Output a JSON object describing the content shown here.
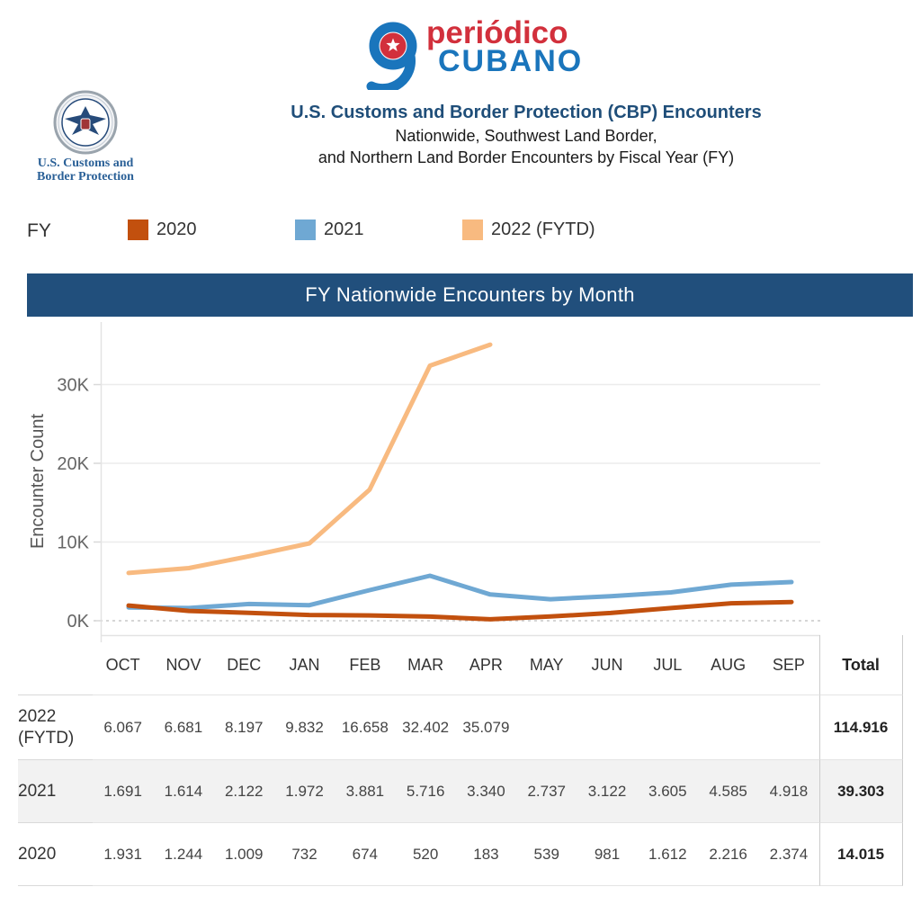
{
  "logo": {
    "word_top": "periódico",
    "word_bottom": "CUBANO",
    "red": "#D2303C",
    "blue": "#1A75BC"
  },
  "seal": {
    "caption_line1": "U.S. Customs and",
    "caption_line2": "Border Protection"
  },
  "header": {
    "title": "U.S. Customs and Border Protection (CBP) Encounters",
    "subtitle_line1": "Nationwide, Southwest Land Border,",
    "subtitle_line2": "and Northern Land Border Encounters by Fiscal Year (FY)"
  },
  "legend": {
    "label": "FY",
    "items": [
      {
        "label": "2020",
        "color": "#C2500E"
      },
      {
        "label": "2021",
        "color": "#6FA8D3"
      },
      {
        "label": "2022 (FYTD)",
        "color": "#F8BA80"
      }
    ]
  },
  "chart_header": {
    "title": "FY Nationwide Encounters by Month",
    "bg": "#214F7C"
  },
  "chart_data": {
    "type": "line",
    "title": "FY Nationwide Encounters by Month",
    "xlabel": "",
    "ylabel": "Encounter Count",
    "categories": [
      "OCT",
      "NOV",
      "DEC",
      "JAN",
      "FEB",
      "MAR",
      "APR",
      "MAY",
      "JUN",
      "JUL",
      "AUG",
      "SEP"
    ],
    "yticks": [
      {
        "label": "0K",
        "value": 0
      },
      {
        "label": "10K",
        "value": 10000
      },
      {
        "label": "20K",
        "value": 20000
      },
      {
        "label": "30K",
        "value": 30000
      }
    ],
    "ylim": [
      0,
      38000
    ],
    "grid": true,
    "legend_position": "top",
    "series": [
      {
        "name": "2022 (FYTD)",
        "color": "#F8BA80",
        "values": [
          6067,
          6681,
          8197,
          9832,
          16658,
          32402,
          35079,
          null,
          null,
          null,
          null,
          null
        ]
      },
      {
        "name": "2021",
        "color": "#6FA8D3",
        "values": [
          1691,
          1614,
          2122,
          1972,
          3881,
          5716,
          3340,
          2737,
          3122,
          3605,
          4585,
          4918
        ]
      },
      {
        "name": "2020",
        "color": "#C2500E",
        "values": [
          1931,
          1244,
          1009,
          732,
          674,
          520,
          183,
          539,
          981,
          1612,
          2216,
          2374
        ]
      }
    ]
  },
  "table": {
    "columns": [
      "OCT",
      "NOV",
      "DEC",
      "JAN",
      "FEB",
      "MAR",
      "APR",
      "MAY",
      "JUN",
      "JUL",
      "AUG",
      "SEP"
    ],
    "total_label": "Total",
    "rows": [
      {
        "label": "2022 (FYTD)",
        "shaded": false,
        "cells": [
          "6.067",
          "6.681",
          "8.197",
          "9.832",
          "16.658",
          "32.402",
          "35.079",
          "",
          "",
          "",
          "",
          ""
        ],
        "total": "114.916"
      },
      {
        "label": "2021",
        "shaded": true,
        "cells": [
          "1.691",
          "1.614",
          "2.122",
          "1.972",
          "3.881",
          "5.716",
          "3.340",
          "2.737",
          "3.122",
          "3.605",
          "4.585",
          "4.918"
        ],
        "total": "39.303"
      },
      {
        "label": "2020",
        "shaded": false,
        "cells": [
          "1.931",
          "1.244",
          "1.009",
          "732",
          "674",
          "520",
          "183",
          "539",
          "981",
          "1.612",
          "2.216",
          "2.374"
        ],
        "total": "14.015"
      }
    ]
  }
}
